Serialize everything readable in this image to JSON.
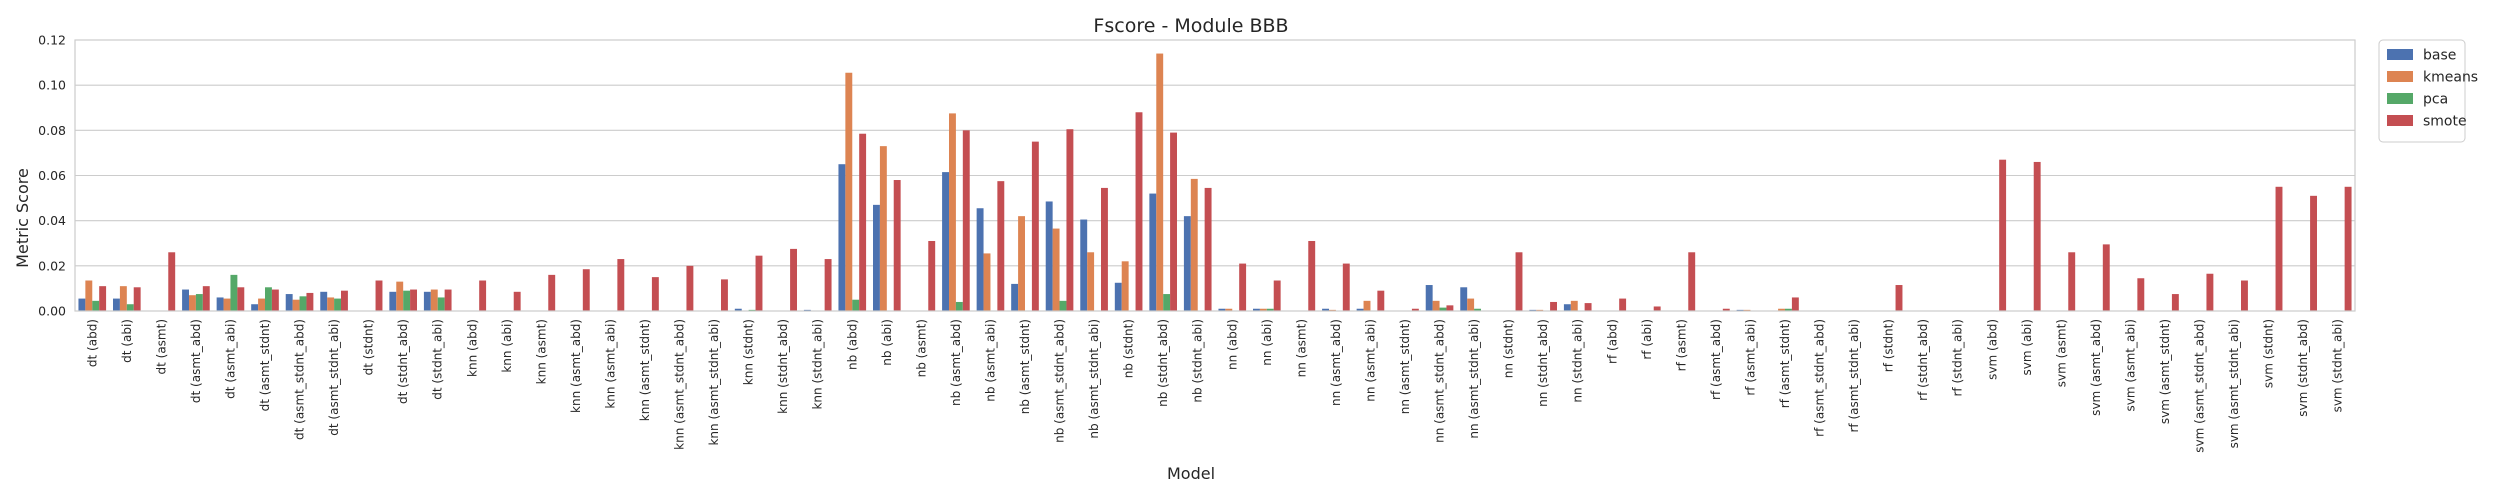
{
  "chart_data": {
    "type": "bar",
    "title": "Fscore - Module BBB",
    "xlabel": "Model",
    "ylabel": "Metric Score",
    "ylim": [
      0,
      0.12
    ],
    "yticks": [
      "0.00",
      "0.02",
      "0.04",
      "0.06",
      "0.08",
      "0.10",
      "0.12"
    ],
    "grid": true,
    "legend_position": "outside-right-top",
    "categories": [
      "dt (abd)",
      "dt (abi)",
      "dt (asmt)",
      "dt (asmt_abd)",
      "dt (asmt_abi)",
      "dt (asmt_stdnt)",
      "dt (asmt_stdnt_abd)",
      "dt (asmt_stdnt_abi)",
      "dt (stdnt)",
      "dt (stdnt_abd)",
      "dt (stdnt_abi)",
      "knn (abd)",
      "knn (abi)",
      "knn (asmt)",
      "knn (asmt_abd)",
      "knn (asmt_abi)",
      "knn (asmt_stdnt)",
      "knn (asmt_stdnt_abd)",
      "knn (asmt_stdnt_abi)",
      "knn (stdnt)",
      "knn (stdnt_abd)",
      "knn (stdnt_abi)",
      "nb (abd)",
      "nb (abi)",
      "nb (asmt)",
      "nb (asmt_abd)",
      "nb (asmt_abi)",
      "nb (asmt_stdnt)",
      "nb (asmt_stdnt_abd)",
      "nb (asmt_stdnt_abi)",
      "nb (stdnt)",
      "nb (stdnt_abd)",
      "nb (stdnt_abi)",
      "nn (abd)",
      "nn (abi)",
      "nn (asmt)",
      "nn (asmt_abd)",
      "nn (asmt_abi)",
      "nn (asmt_stdnt)",
      "nn (asmt_stdnt_abd)",
      "nn (asmt_stdnt_abi)",
      "nn (stdnt)",
      "nn (stdnt_abd)",
      "nn (stdnt_abi)",
      "rf (abd)",
      "rf (abi)",
      "rf (asmt)",
      "rf (asmt_abd)",
      "rf (asmt_abi)",
      "rf (asmt_stdnt)",
      "rf (asmt_stdnt_abd)",
      "rf (asmt_stdnt_abi)",
      "rf (stdnt)",
      "rf (stdnt_abd)",
      "rf (stdnt_abi)",
      "svm (abd)",
      "svm (abi)",
      "svm (asmt)",
      "svm (asmt_abd)",
      "svm (asmt_abi)",
      "svm (asmt_stdnt)",
      "svm (asmt_stdnt_abd)",
      "svm (asmt_stdnt_abi)",
      "svm (stdnt)",
      "svm (stdnt_abd)",
      "svm (stdnt_abi)"
    ],
    "series": [
      {
        "name": "base",
        "color": "#4c72b0",
        "values": [
          0.0055,
          0.0055,
          0,
          0.0095,
          0.006,
          0.003,
          0.0075,
          0.0085,
          0,
          0.0085,
          0.0085,
          0,
          0,
          0,
          0,
          0,
          0,
          0,
          0,
          0.001,
          0,
          0.0005,
          0.065,
          0.047,
          0,
          0.0615,
          0.0455,
          0.012,
          0.0485,
          0.0405,
          0.0125,
          0.052,
          0.042,
          0.001,
          0.001,
          0,
          0.001,
          0.001,
          0,
          0.0115,
          0.0105,
          0,
          0.0005,
          0.003,
          0,
          0,
          0,
          0,
          0.0005,
          0,
          0,
          0,
          0,
          0,
          0,
          0,
          0,
          0,
          0,
          0,
          0,
          0,
          0,
          0,
          0,
          0
        ]
      },
      {
        "name": "kmeans",
        "color": "#dd8452",
        "values": [
          0.0135,
          0.011,
          0,
          0.007,
          0.0055,
          0.0055,
          0.005,
          0.006,
          0,
          0.013,
          0.0095,
          0,
          0,
          0,
          0,
          0,
          0,
          0,
          0,
          0,
          0,
          0,
          0.1055,
          0.073,
          0,
          0.0875,
          0.0255,
          0.042,
          0.0365,
          0.026,
          0.022,
          0.114,
          0.0585,
          0.001,
          0.001,
          0,
          0.0005,
          0.0045,
          0,
          0.0045,
          0.0055,
          0,
          0.0005,
          0.0045,
          0,
          0,
          0,
          0,
          0.0005,
          0.001,
          0,
          0,
          0,
          0,
          0,
          0,
          0,
          0,
          0,
          0,
          0,
          0,
          0,
          0,
          0,
          0
        ]
      },
      {
        "name": "pca",
        "color": "#55a868",
        "values": [
          0.0045,
          0.003,
          0,
          0.0075,
          0.016,
          0.0105,
          0.0065,
          0.0055,
          0,
          0.009,
          0.006,
          0,
          0,
          0,
          0,
          0,
          0,
          0,
          0,
          0.0005,
          0,
          0,
          0.005,
          0,
          0,
          0.004,
          0,
          0,
          0.0045,
          0,
          0,
          0.0075,
          0,
          0,
          0.001,
          0,
          0,
          0,
          0,
          0.0015,
          0.001,
          0,
          0,
          0,
          0,
          0,
          0,
          0,
          0,
          0.001,
          0,
          0,
          0,
          0,
          0,
          0,
          0,
          0,
          0,
          0,
          0,
          0,
          0,
          0,
          0,
          0
        ]
      },
      {
        "name": "smote",
        "color": "#c44e52",
        "values": [
          0.011,
          0.0105,
          0.026,
          0.011,
          0.0105,
          0.0095,
          0.008,
          0.009,
          0.0135,
          0.0095,
          0.0095,
          0.0135,
          0.0085,
          0.016,
          0.0185,
          0.023,
          0.015,
          0.02,
          0.014,
          0.0245,
          0.0275,
          0.023,
          0.0785,
          0.058,
          0.031,
          0.08,
          0.0575,
          0.075,
          0.0805,
          0.0545,
          0.088,
          0.079,
          0.0545,
          0.021,
          0.0135,
          0.031,
          0.021,
          0.009,
          0.001,
          0.0025,
          0,
          0.026,
          0.004,
          0.0035,
          0.0055,
          0.002,
          0.026,
          0.001,
          0,
          0.006,
          0,
          0,
          0.0115,
          0,
          0,
          0.067,
          0.066,
          0.026,
          0.0295,
          0.0145,
          0.0075,
          0.0165,
          0.0135,
          0.055,
          0.051,
          0.055
        ]
      }
    ]
  }
}
